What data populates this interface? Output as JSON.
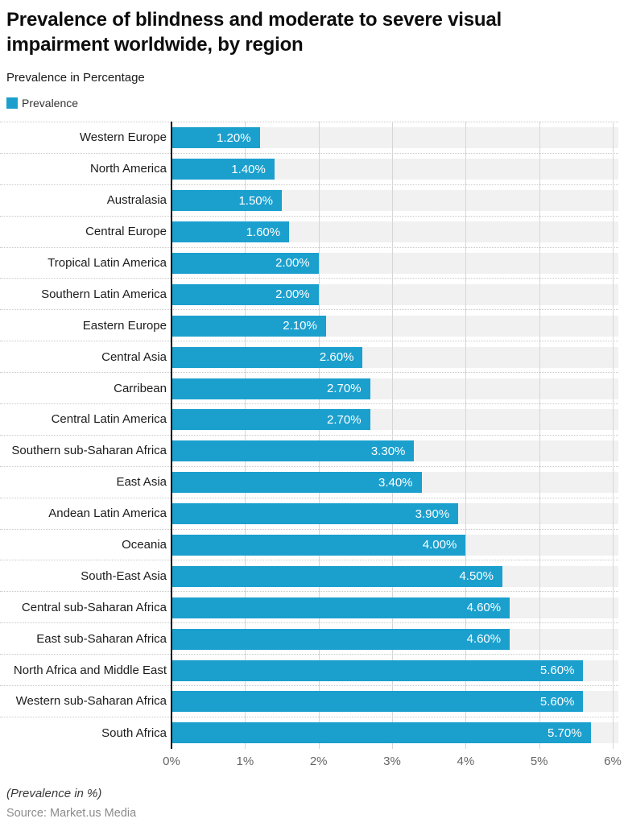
{
  "header": {
    "title": "Prevalence of blindness and moderate to severe visual impairment worldwide, by region",
    "subtitle": "Prevalence in Percentage"
  },
  "legend": {
    "label": "Prevalence",
    "swatch_color": "#1BA0CE"
  },
  "chart_data": {
    "type": "bar",
    "orientation": "horizontal",
    "title": "Prevalence of blindness and moderate to severe visual impairment worldwide, by region",
    "series_name": "Prevalence",
    "categories": [
      "Western Europe",
      "North America",
      "Australasia",
      "Central Europe",
      "Tropical Latin America",
      "Southern Latin America",
      "Eastern Europe",
      "Central Asia",
      "Carribean",
      "Central Latin America",
      "Southern sub-Saharan Africa",
      "East Asia",
      "Andean Latin America",
      "Oceania",
      "South-East Asia",
      "Central sub-Saharan Africa",
      "East sub-Saharan Africa",
      "North Africa and Middle East",
      "Western sub-Saharan Africa",
      "South Africa"
    ],
    "values": [
      1.2,
      1.4,
      1.5,
      1.6,
      2.0,
      2.0,
      2.1,
      2.6,
      2.7,
      2.7,
      3.3,
      3.4,
      3.9,
      4.0,
      4.5,
      4.6,
      4.6,
      5.6,
      5.6,
      5.7
    ],
    "value_labels": [
      "1.20%",
      "1.40%",
      "1.50%",
      "1.60%",
      "2.00%",
      "2.00%",
      "2.10%",
      "2.60%",
      "2.70%",
      "2.70%",
      "3.30%",
      "3.40%",
      "3.90%",
      "4.00%",
      "4.50%",
      "4.60%",
      "4.60%",
      "5.60%",
      "5.60%",
      "5.70%"
    ],
    "x_ticks": [
      "0%",
      "1%",
      "2%",
      "3%",
      "4%",
      "5%",
      "6%"
    ],
    "xlim": [
      0,
      6
    ],
    "xlabel": "(Prevalence in %)",
    "ylabel": "",
    "grid": true,
    "legend_position": "top-left",
    "bar_color": "#1BA0CE",
    "band_color": "#F1F1F1"
  },
  "footer": {
    "axis_note": "(Prevalence in %)",
    "source": "Source: Market.us Media"
  }
}
